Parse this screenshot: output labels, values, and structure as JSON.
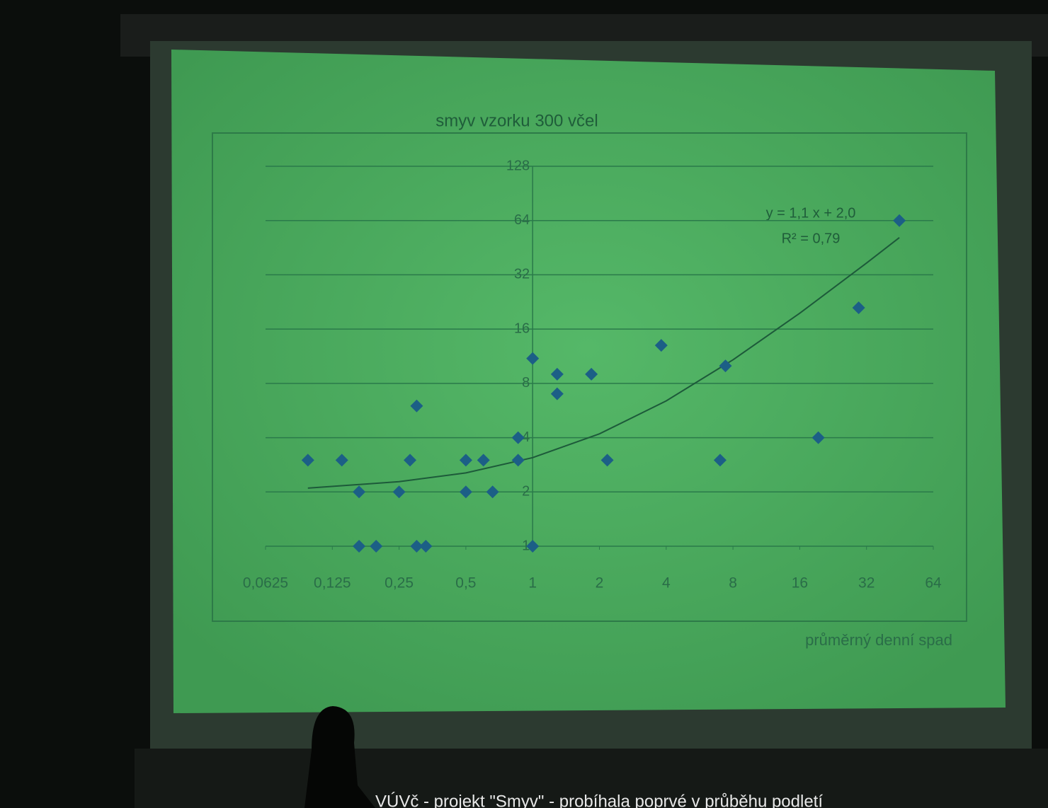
{
  "chart_data": {
    "type": "scatter",
    "title": "smyv vzorku 300 včel",
    "x_label": "průměrný denní spad",
    "annotations": [
      "y = 1,1 x + 2,0",
      "R² = 0,79"
    ],
    "caption": "VÚVč - projekt \"Smyv\" - probíhala poprvé v průběhu podletí",
    "xscale": "log",
    "yscale": "log",
    "xlim": [
      0.0625,
      64
    ],
    "ylim": [
      1,
      128
    ],
    "xticks": [
      {
        "value": 0.0625,
        "label": "0,0625"
      },
      {
        "value": 0.125,
        "label": "0,125"
      },
      {
        "value": 0.25,
        "label": "0,25"
      },
      {
        "value": 0.5,
        "label": "0,5"
      },
      1,
      2,
      4,
      8,
      16,
      32,
      64
    ],
    "yticks": [
      1,
      2,
      4,
      8,
      16,
      32,
      64,
      128
    ],
    "grid": true,
    "color": "#1c5f86",
    "x": [
      0.097,
      0.138,
      0.165,
      0.165,
      0.197,
      0.25,
      0.28,
      0.3,
      0.3,
      0.33,
      0.5,
      0.5,
      0.6,
      0.66,
      0.86,
      0.86,
      1,
      1,
      1.29,
      1.29,
      1.84,
      2.17,
      3.8,
      7,
      7.4,
      19.4,
      29.5,
      45
    ],
    "values": [
      3,
      3,
      2,
      1,
      1,
      2,
      3,
      6,
      1,
      1,
      3,
      2,
      3,
      2,
      4,
      3,
      1,
      11,
      9,
      7,
      9,
      3,
      13,
      3,
      10,
      4,
      21,
      64
    ],
    "trendline": {
      "color": "#1d5a3a",
      "x": [
        0.097,
        0.25,
        0.5,
        1,
        2,
        4,
        8,
        16,
        32,
        45
      ],
      "values": [
        2.1,
        2.28,
        2.55,
        3.1,
        4.2,
        6.4,
        10.8,
        19.6,
        37.2,
        51.5
      ]
    }
  }
}
